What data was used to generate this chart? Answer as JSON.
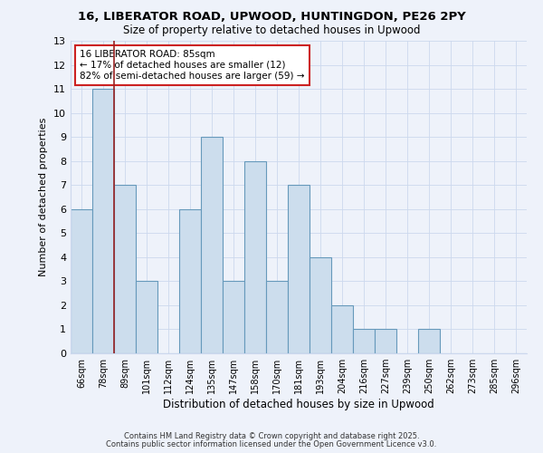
{
  "title": "16, LIBERATOR ROAD, UPWOOD, HUNTINGDON, PE26 2PY",
  "subtitle": "Size of property relative to detached houses in Upwood",
  "xlabel": "Distribution of detached houses by size in Upwood",
  "ylabel": "Number of detached properties",
  "bar_labels": [
    "66sqm",
    "78sqm",
    "89sqm",
    "101sqm",
    "112sqm",
    "124sqm",
    "135sqm",
    "147sqm",
    "158sqm",
    "170sqm",
    "181sqm",
    "193sqm",
    "204sqm",
    "216sqm",
    "227sqm",
    "239sqm",
    "250sqm",
    "262sqm",
    "273sqm",
    "285sqm",
    "296sqm"
  ],
  "bar_values": [
    6,
    11,
    7,
    3,
    0,
    6,
    9,
    3,
    8,
    3,
    7,
    4,
    2,
    1,
    1,
    0,
    1,
    0,
    0,
    0,
    0
  ],
  "bar_color": "#ccdded",
  "bar_edge_color": "#6699bb",
  "grid_color": "#ccd8ee",
  "background_color": "#eef2fa",
  "ylim": [
    0,
    13
  ],
  "red_line_x": 1.5,
  "annotation_title": "16 LIBERATOR ROAD: 85sqm",
  "annotation_line1": "← 17% of detached houses are smaller (12)",
  "annotation_line2": "82% of semi-detached houses are larger (59) →",
  "annotation_box_facecolor": "#ffffff",
  "annotation_box_edgecolor": "#cc2222",
  "red_line_color": "#992222",
  "footer1": "Contains HM Land Registry data © Crown copyright and database right 2025.",
  "footer2": "Contains public sector information licensed under the Open Government Licence v3.0."
}
